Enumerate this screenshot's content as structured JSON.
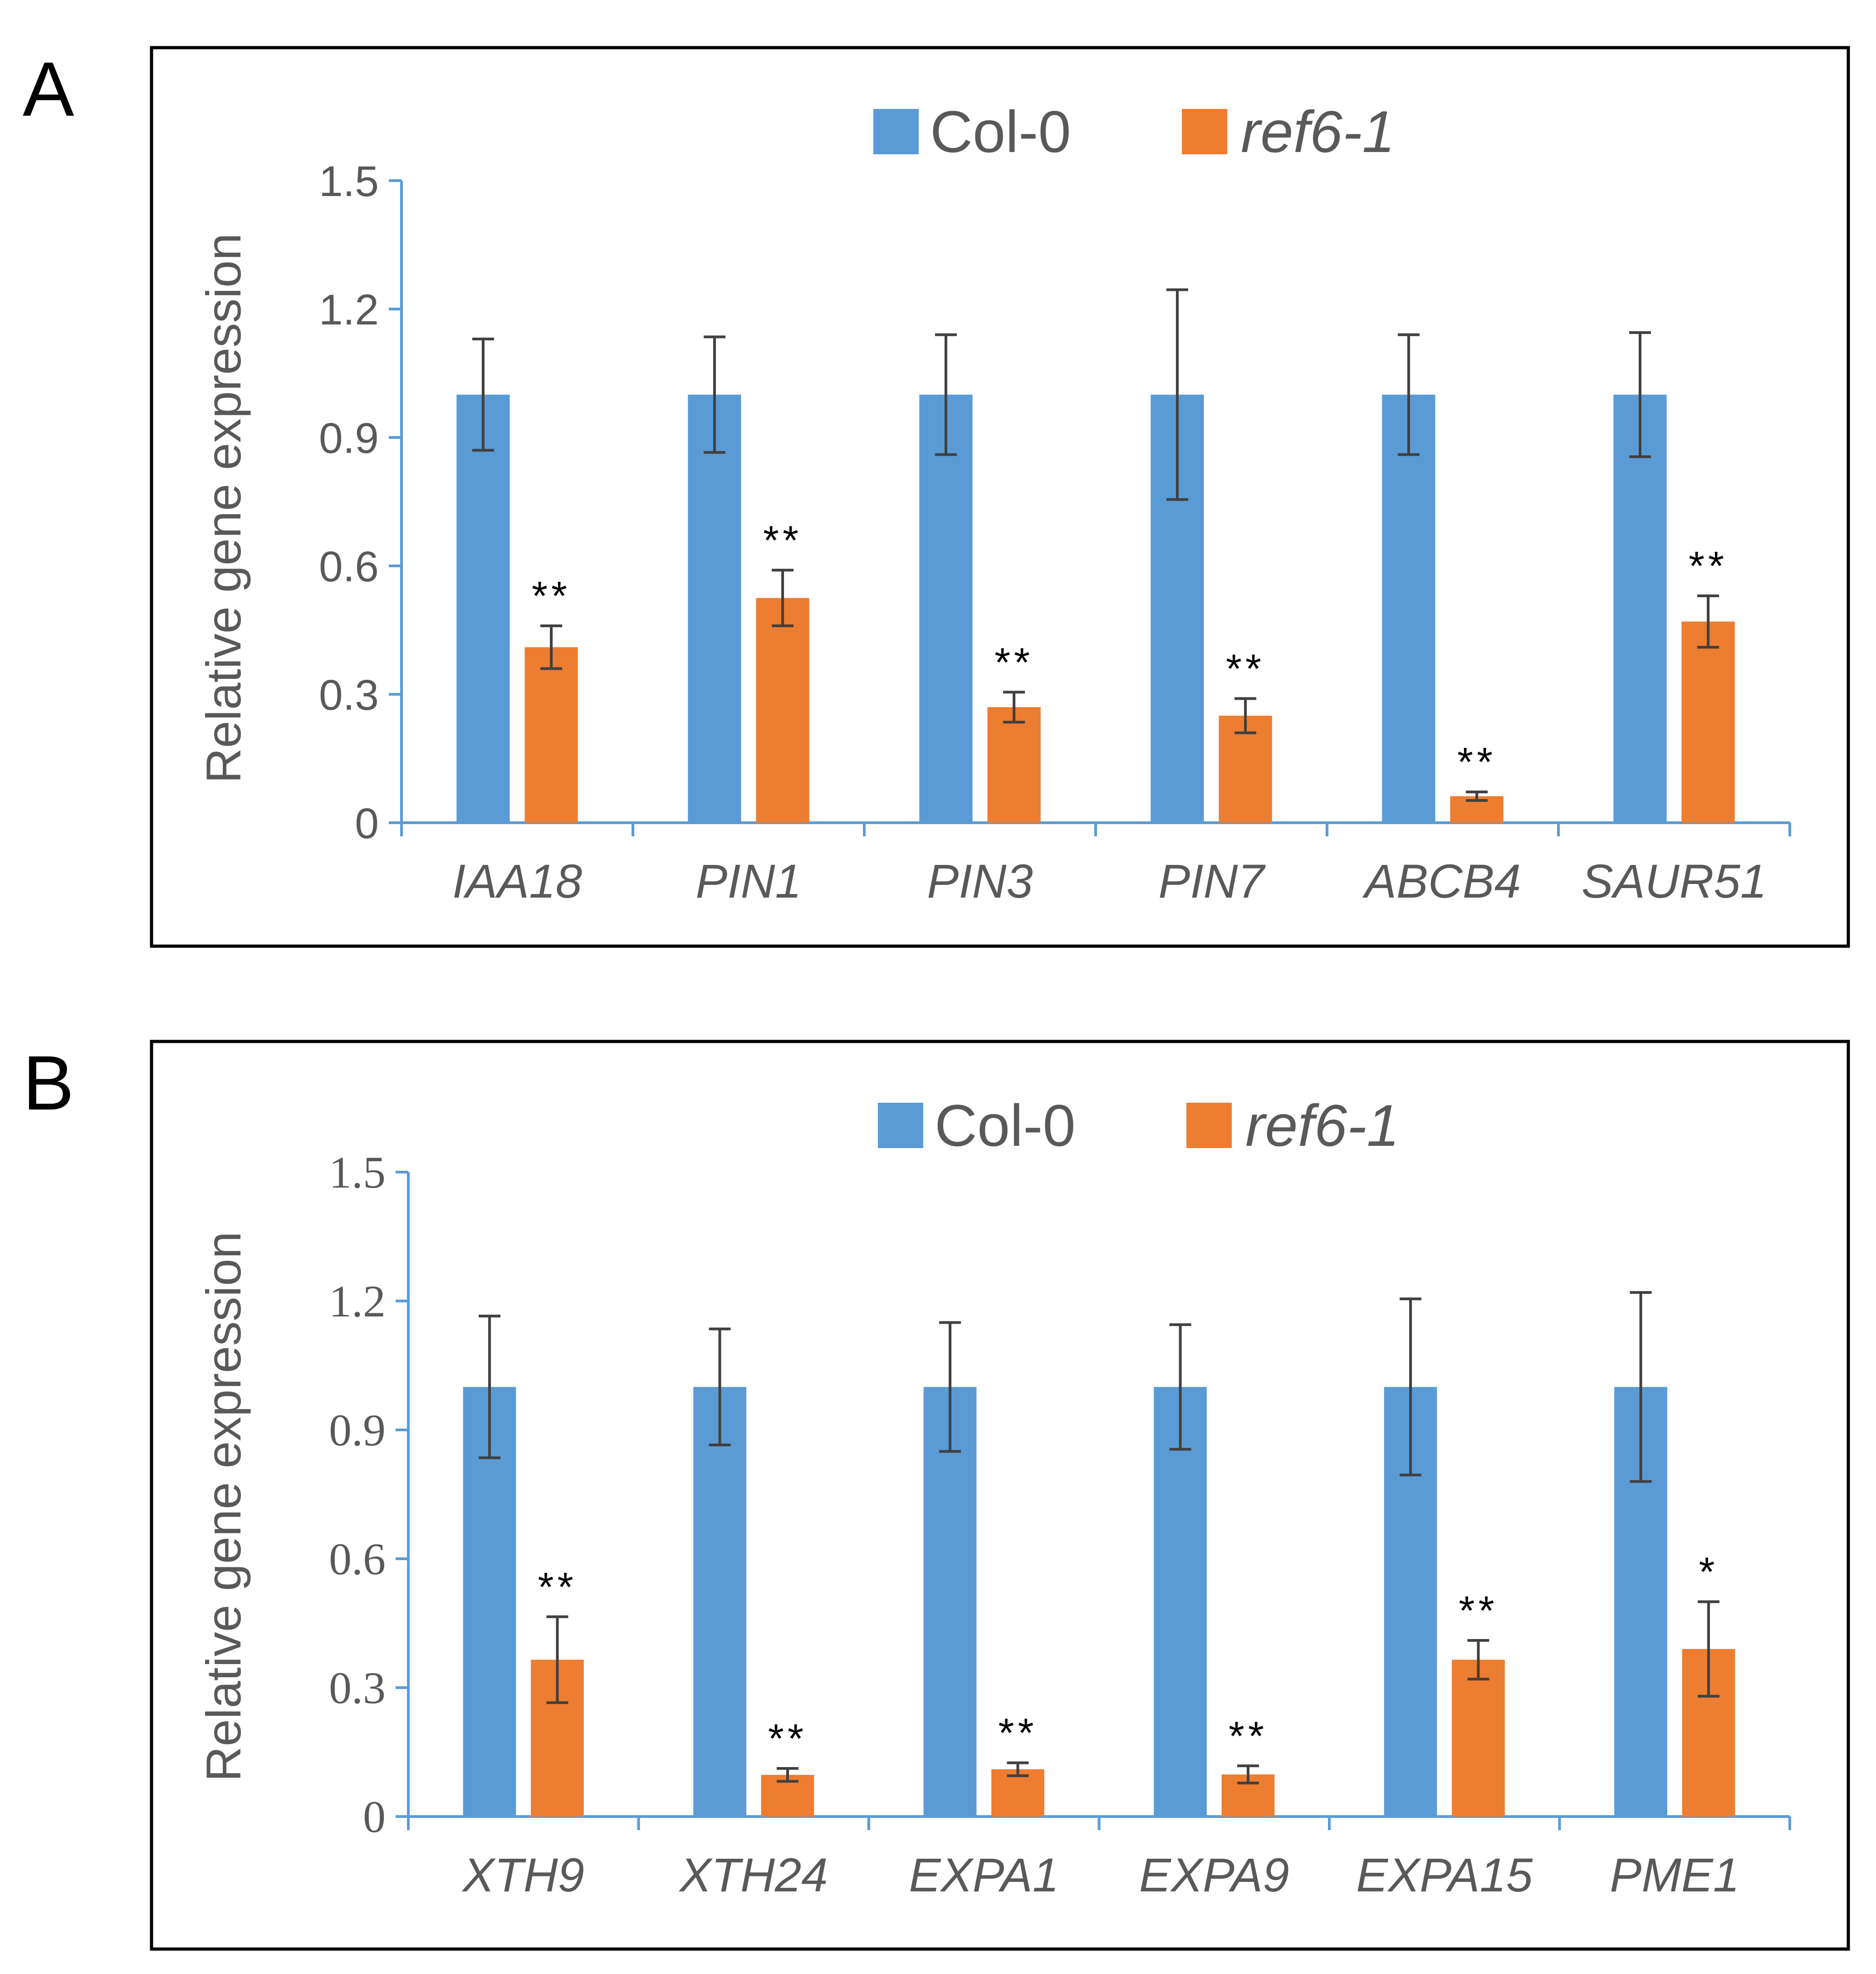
{
  "colors": {
    "col0": "#5B9BD5",
    "ref6": "#ED7D31",
    "axis": "#5B9BD5",
    "error": "#404040",
    "text": "#595959",
    "frame": "#000000"
  },
  "chart_data": [
    {
      "panel": "A",
      "type": "bar",
      "ylabel": "Relative gene expression",
      "ylim": [
        0,
        1.5
      ],
      "yticks": [
        "0",
        "0.3",
        "0.6",
        "0.9",
        "1.2",
        "1.5"
      ],
      "tick_font": "sans",
      "categories": [
        "IAA18",
        "PIN1",
        "PIN3",
        "PIN7",
        "ABCB4",
        "SAUR51"
      ],
      "legend": [
        "Col-0",
        "ref6-1"
      ],
      "series": [
        {
          "name": "Col-0",
          "values": [
            1.0,
            1.0,
            1.0,
            1.0,
            1.0,
            1.0
          ],
          "errors": [
            0.13,
            0.135,
            0.14,
            0.245,
            0.14,
            0.145
          ]
        },
        {
          "name": "ref6-1",
          "values": [
            0.41,
            0.525,
            0.27,
            0.25,
            0.062,
            0.47
          ],
          "errors": [
            0.05,
            0.065,
            0.035,
            0.04,
            0.01,
            0.06
          ]
        }
      ],
      "significance": [
        "**",
        "**",
        "**",
        "**",
        "**",
        "**"
      ]
    },
    {
      "panel": "B",
      "type": "bar",
      "ylabel": "Relative gene expression",
      "ylim": [
        0,
        1.5
      ],
      "yticks": [
        "0",
        "0.3",
        "0.6",
        "0.9",
        "1.2",
        "1.5"
      ],
      "tick_font": "serif",
      "categories": [
        "XTH9",
        "XTH24",
        "EXPA1",
        "EXPA9",
        "EXPA15",
        "PME1"
      ],
      "legend": [
        "Col-0",
        "ref6-1"
      ],
      "series": [
        {
          "name": "Col-0",
          "values": [
            1.0,
            1.0,
            1.0,
            1.0,
            1.0,
            1.0
          ],
          "errors": [
            0.165,
            0.135,
            0.15,
            0.145,
            0.205,
            0.22
          ]
        },
        {
          "name": "ref6-1",
          "values": [
            0.365,
            0.097,
            0.11,
            0.098,
            0.365,
            0.39
          ],
          "errors": [
            0.1,
            0.015,
            0.015,
            0.02,
            0.045,
            0.11
          ]
        }
      ],
      "significance": [
        "**",
        "**",
        "**",
        "**",
        "**",
        "*"
      ]
    }
  ]
}
